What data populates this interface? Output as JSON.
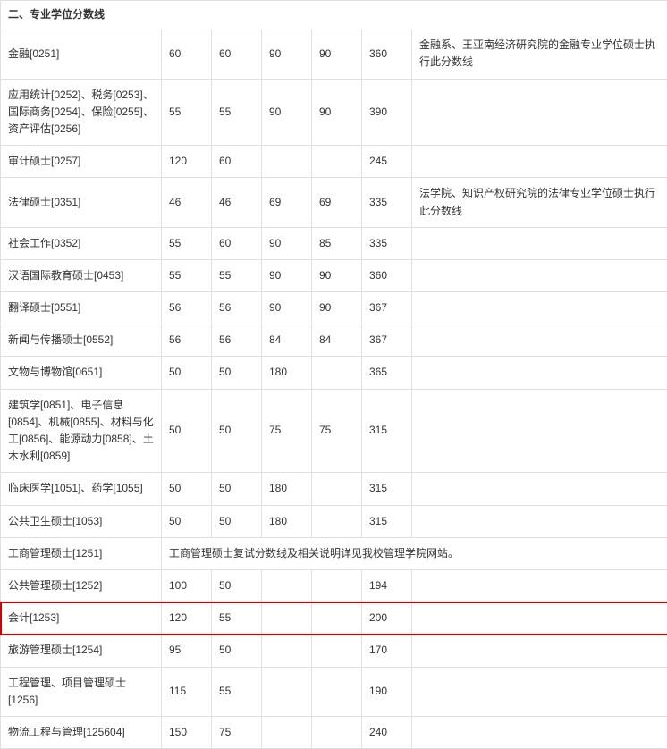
{
  "title": "二、专业学位分数线",
  "highlight_row_index": 15,
  "highlight_color": "#d40000",
  "rows": [
    {
      "label": "金融[0251]",
      "c1": "60",
      "c2": "60",
      "c3": "90",
      "c4": "90",
      "c5": "360",
      "note": "金融系、王亚南经济研究院的金融专业学位硕士执行此分数线"
    },
    {
      "label": "应用统计[0252]、税务[0253]、国际商务[0254]、保险[0255]、资产评估[0256]",
      "c1": "55",
      "c2": "55",
      "c3": "90",
      "c4": "90",
      "c5": "390",
      "note": ""
    },
    {
      "label": "审计硕士[0257]",
      "c1": "120",
      "c2": "60",
      "c3": "",
      "c4": "",
      "c5": "245",
      "note": ""
    },
    {
      "label": "法律硕士[0351]",
      "c1": "46",
      "c2": "46",
      "c3": "69",
      "c4": "69",
      "c5": "335",
      "note": "法学院、知识产权研究院的法律专业学位硕士执行此分数线"
    },
    {
      "label": "社会工作[0352]",
      "c1": "55",
      "c2": "60",
      "c3": "90",
      "c4": "85",
      "c5": "335",
      "note": ""
    },
    {
      "label": "汉语国际教育硕士[0453]",
      "c1": "55",
      "c2": "55",
      "c3": "90",
      "c4": "90",
      "c5": "360",
      "note": ""
    },
    {
      "label": "翻译硕士[0551]",
      "c1": "56",
      "c2": "56",
      "c3": "90",
      "c4": "90",
      "c5": "367",
      "note": ""
    },
    {
      "label": "新闻与传播硕士[0552]",
      "c1": "56",
      "c2": "56",
      "c3": "84",
      "c4": "84",
      "c5": "367",
      "note": ""
    },
    {
      "label": "文物与博物馆[0651]",
      "c1": "50",
      "c2": "50",
      "c3": "180",
      "c4": "",
      "c5": "365",
      "note": ""
    },
    {
      "label": "建筑学[0851]、电子信息[0854]、机械[0855]、材料与化工[0856]、能源动力[0858]、土木水利[0859]",
      "c1": "50",
      "c2": "50",
      "c3": "75",
      "c4": "75",
      "c5": "315",
      "note": ""
    },
    {
      "label": "临床医学[1051]、药学[1055]",
      "c1": "50",
      "c2": "50",
      "c3": "180",
      "c4": "",
      "c5": "315",
      "note": ""
    },
    {
      "label": "公共卫生硕士[1053]",
      "c1": "50",
      "c2": "50",
      "c3": "180",
      "c4": "",
      "c5": "315",
      "note": ""
    },
    {
      "label": "工商管理硕士[1251]",
      "merged": true,
      "merged_text": "工商管理硕士复试分数线及相关说明详见我校管理学院网站。"
    },
    {
      "label": "公共管理硕士[1252]",
      "c1": "100",
      "c2": "50",
      "c3": "",
      "c4": "",
      "c5": "194",
      "note": ""
    },
    {
      "label": "会计[1253]",
      "c1": "120",
      "c2": "55",
      "c3": "",
      "c4": "",
      "c5": "200",
      "note": ""
    },
    {
      "label": "旅游管理硕士[1254]",
      "c1": "95",
      "c2": "50",
      "c3": "",
      "c4": "",
      "c5": "170",
      "note": ""
    },
    {
      "label": "工程管理、项目管理硕士[1256]",
      "c1": "115",
      "c2": "55",
      "c3": "",
      "c4": "",
      "c5": "190",
      "note": ""
    },
    {
      "label": "物流工程与管理[125604]",
      "c1": "150",
      "c2": "75",
      "c3": "",
      "c4": "",
      "c5": "240",
      "note": ""
    }
  ]
}
